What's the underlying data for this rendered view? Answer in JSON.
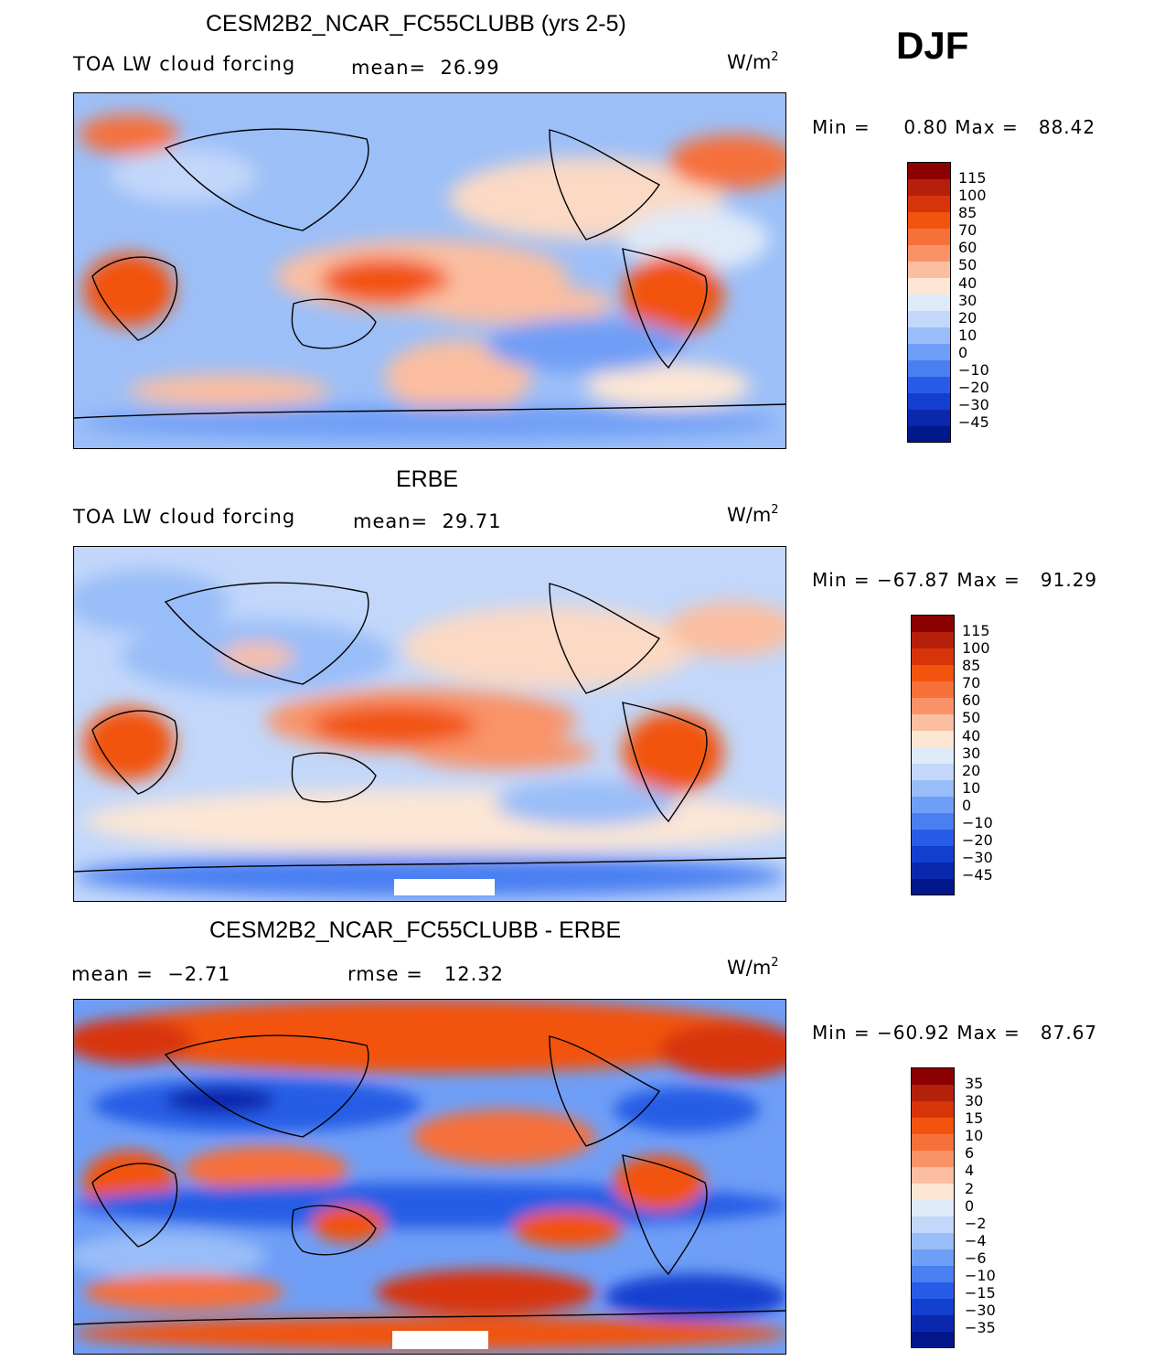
{
  "season": "DJF",
  "panels": [
    {
      "title": "CESM2B2_NCAR_FC55CLUBB (yrs 2-5)",
      "variable": "TOA LW cloud forcing",
      "stat_label": "mean=",
      "stat_value": "26.99",
      "units": "W/m",
      "units_exp": "2",
      "min_label": "Min =",
      "min_value": "0.80",
      "max_label": "Max =",
      "max_value": "88.42",
      "colorbar_labels": [
        "115",
        "100",
        "85",
        "70",
        "60",
        "50",
        "40",
        "30",
        "20",
        "10",
        "0",
        "−10",
        "−20",
        "−30",
        "−45"
      ]
    },
    {
      "title": "ERBE",
      "variable": "TOA LW cloud forcing",
      "stat_label": "mean=",
      "stat_value": "29.71",
      "units": "W/m",
      "units_exp": "2",
      "min_label": "Min =",
      "min_value": "−67.87",
      "max_label": "Max =",
      "max_value": "91.29",
      "colorbar_labels": [
        "115",
        "100",
        "85",
        "70",
        "60",
        "50",
        "40",
        "30",
        "20",
        "10",
        "0",
        "−10",
        "−20",
        "−30",
        "−45"
      ]
    },
    {
      "title": "CESM2B2_NCAR_FC55CLUBB - ERBE",
      "stat_label": "mean =",
      "stat_value": "−2.71",
      "rmse_label": "rmse =",
      "rmse_value": "12.32",
      "units": "W/m",
      "units_exp": "2",
      "min_label": "Min =",
      "min_value": "−60.92",
      "max_label": "Max =",
      "max_value": "87.67",
      "colorbar_labels": [
        "35",
        "30",
        "15",
        "10",
        "6",
        "4",
        "2",
        "0",
        "−2",
        "−4",
        "−6",
        "−10",
        "−15",
        "−30",
        "−35"
      ]
    }
  ],
  "colorbar_colors": [
    "#8b0000",
    "#b5200a",
    "#d83409",
    "#f2530f",
    "#f6703a",
    "#f99367",
    "#fbbea0",
    "#fde6d4",
    "#dfeaf8",
    "#c2d7fa",
    "#99bdf8",
    "#6f9ef6",
    "#4a7ff2",
    "#275de6",
    "#123fcf",
    "#0a28ae",
    "#03178c"
  ]
}
